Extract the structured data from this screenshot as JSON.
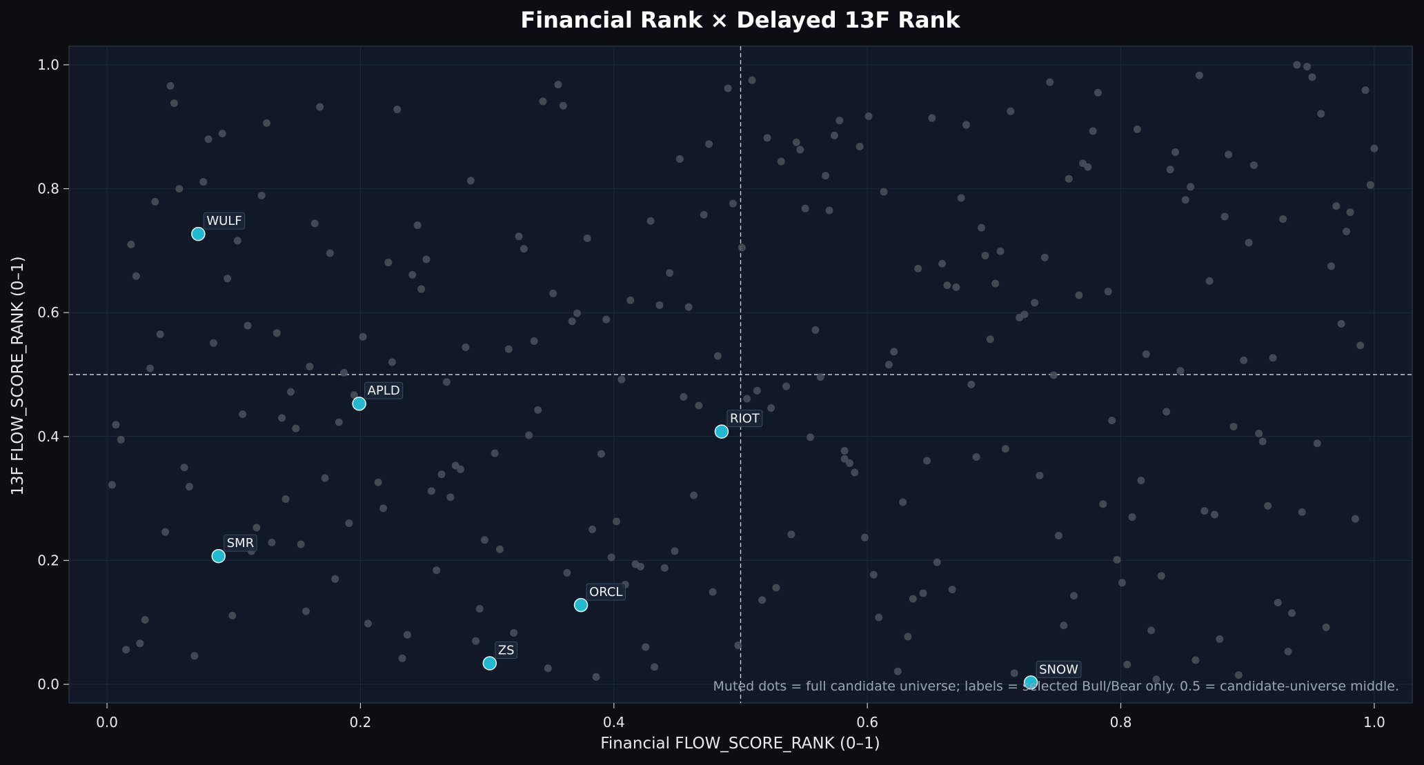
{
  "chart_data": {
    "type": "scatter",
    "title": "Financial Rank × Delayed 13F Rank",
    "xlabel": "Financial FLOW_SCORE_RANK (0–1)",
    "ylabel": "13F FLOW_SCORE_RANK (0–1)",
    "xlim": [
      -0.03,
      1.03
    ],
    "ylim": [
      -0.03,
      1.03
    ],
    "xticks": [
      "0.0",
      "0.2",
      "0.4",
      "0.6",
      "0.8",
      "1.0"
    ],
    "yticks": [
      "0.0",
      "0.2",
      "0.4",
      "0.6",
      "0.8",
      "1.0"
    ],
    "reference_lines": {
      "x": 0.5,
      "y": 0.5,
      "style": "dashed"
    },
    "grid": true,
    "note": "Muted dots = full candidate universe; labels = selected Bull/Bear only. 0.5 = candidate-universe middle.",
    "colors": {
      "background": "#0b0f13",
      "plot_background": "#111827",
      "muted_point": "#4b525d",
      "selected_point": "#22b8cf",
      "reference_line": "#c8ccd3"
    },
    "selected": [
      {
        "ticker": "WULF",
        "x": 0.072,
        "y": 0.727
      },
      {
        "ticker": "APLD",
        "x": 0.199,
        "y": 0.453
      },
      {
        "ticker": "RIOT",
        "x": 0.485,
        "y": 0.408
      },
      {
        "ticker": "SMR",
        "x": 0.088,
        "y": 0.207
      },
      {
        "ticker": "ORCL",
        "x": 0.374,
        "y": 0.128
      },
      {
        "ticker": "ZS",
        "x": 0.302,
        "y": 0.034
      },
      {
        "ticker": "SNOW",
        "x": 0.729,
        "y": 0.003
      }
    ],
    "universe": [
      [
        0.004,
        0.322
      ],
      [
        0.007,
        0.419
      ],
      [
        0.011,
        0.395
      ],
      [
        0.015,
        0.056
      ],
      [
        0.019,
        0.71
      ],
      [
        0.023,
        0.659
      ],
      [
        0.026,
        0.066
      ],
      [
        0.03,
        0.104
      ],
      [
        0.034,
        0.51
      ],
      [
        0.038,
        0.779
      ],
      [
        0.042,
        0.565
      ],
      [
        0.046,
        0.246
      ],
      [
        0.05,
        0.966
      ],
      [
        0.053,
        0.938
      ],
      [
        0.057,
        0.8
      ],
      [
        0.061,
        0.35
      ],
      [
        0.065,
        0.319
      ],
      [
        0.069,
        0.046
      ],
      [
        0.076,
        0.811
      ],
      [
        0.08,
        0.88
      ],
      [
        0.084,
        0.551
      ],
      [
        0.091,
        0.889
      ],
      [
        0.095,
        0.655
      ],
      [
        0.099,
        0.111
      ],
      [
        0.103,
        0.716
      ],
      [
        0.107,
        0.436
      ],
      [
        0.111,
        0.579
      ],
      [
        0.114,
        0.215
      ],
      [
        0.118,
        0.253
      ],
      [
        0.122,
        0.789
      ],
      [
        0.126,
        0.906
      ],
      [
        0.13,
        0.229
      ],
      [
        0.134,
        0.567
      ],
      [
        0.138,
        0.43
      ],
      [
        0.141,
        0.299
      ],
      [
        0.145,
        0.472
      ],
      [
        0.149,
        0.413
      ],
      [
        0.153,
        0.226
      ],
      [
        0.157,
        0.118
      ],
      [
        0.16,
        0.513
      ],
      [
        0.164,
        0.744
      ],
      [
        0.168,
        0.932
      ],
      [
        0.172,
        0.333
      ],
      [
        0.176,
        0.696
      ],
      [
        0.18,
        0.17
      ],
      [
        0.183,
        0.423
      ],
      [
        0.187,
        0.503
      ],
      [
        0.191,
        0.26
      ],
      [
        0.195,
        0.467
      ],
      [
        0.202,
        0.561
      ],
      [
        0.206,
        0.098
      ],
      [
        0.21,
        0.472
      ],
      [
        0.214,
        0.326
      ],
      [
        0.218,
        0.284
      ],
      [
        0.222,
        0.681
      ],
      [
        0.225,
        0.52
      ],
      [
        0.229,
        0.928
      ],
      [
        0.233,
        0.042
      ],
      [
        0.237,
        0.08
      ],
      [
        0.241,
        0.661
      ],
      [
        0.245,
        0.741
      ],
      [
        0.248,
        0.638
      ],
      [
        0.252,
        0.686
      ],
      [
        0.256,
        0.312
      ],
      [
        0.26,
        0.184
      ],
      [
        0.264,
        0.339
      ],
      [
        0.268,
        0.488
      ],
      [
        0.271,
        0.302
      ],
      [
        0.275,
        0.353
      ],
      [
        0.279,
        0.347
      ],
      [
        0.283,
        0.544
      ],
      [
        0.287,
        0.813
      ],
      [
        0.291,
        0.07
      ],
      [
        0.294,
        0.122
      ],
      [
        0.298,
        0.233
      ],
      [
        0.306,
        0.373
      ],
      [
        0.31,
        0.218
      ],
      [
        0.317,
        0.541
      ],
      [
        0.321,
        0.083
      ],
      [
        0.325,
        0.723
      ],
      [
        0.329,
        0.703
      ],
      [
        0.333,
        0.402
      ],
      [
        0.337,
        0.554
      ],
      [
        0.34,
        0.443
      ],
      [
        0.344,
        0.941
      ],
      [
        0.348,
        0.026
      ],
      [
        0.352,
        0.631
      ],
      [
        0.356,
        0.968
      ],
      [
        0.36,
        0.934
      ],
      [
        0.363,
        0.18
      ],
      [
        0.367,
        0.586
      ],
      [
        0.371,
        0.599
      ],
      [
        0.379,
        0.72
      ],
      [
        0.383,
        0.25
      ],
      [
        0.386,
        0.012
      ],
      [
        0.39,
        0.372
      ],
      [
        0.394,
        0.589
      ],
      [
        0.398,
        0.205
      ],
      [
        0.402,
        0.263
      ],
      [
        0.406,
        0.492
      ],
      [
        0.409,
        0.161
      ],
      [
        0.413,
        0.62
      ],
      [
        0.417,
        0.194
      ],
      [
        0.421,
        0.19
      ],
      [
        0.425,
        0.06
      ],
      [
        0.429,
        0.748
      ],
      [
        0.432,
        0.028
      ],
      [
        0.436,
        0.612
      ],
      [
        0.44,
        0.188
      ],
      [
        0.444,
        0.664
      ],
      [
        0.448,
        0.215
      ],
      [
        0.452,
        0.848
      ],
      [
        0.455,
        0.464
      ],
      [
        0.459,
        0.609
      ],
      [
        0.463,
        0.305
      ],
      [
        0.467,
        0.45
      ],
      [
        0.471,
        0.758
      ],
      [
        0.475,
        0.872
      ],
      [
        0.478,
        0.149
      ],
      [
        0.482,
        0.53
      ],
      [
        0.49,
        0.962
      ],
      [
        0.494,
        0.776
      ],
      [
        0.498,
        0.063
      ],
      [
        0.501,
        0.705
      ],
      [
        0.505,
        0.461
      ],
      [
        0.509,
        0.975
      ],
      [
        0.513,
        0.474
      ],
      [
        0.517,
        0.136
      ],
      [
        0.521,
        0.882
      ],
      [
        0.524,
        0.446
      ],
      [
        0.528,
        0.156
      ],
      [
        0.532,
        0.844
      ],
      [
        0.536,
        0.481
      ],
      [
        0.54,
        0.242
      ],
      [
        0.544,
        0.875
      ],
      [
        0.547,
        0.863
      ],
      [
        0.551,
        0.768
      ],
      [
        0.555,
        0.399
      ],
      [
        0.559,
        0.572
      ],
      [
        0.563,
        0.496
      ],
      [
        0.567,
        0.821
      ],
      [
        0.57,
        0.765
      ],
      [
        0.574,
        0.886
      ],
      [
        0.578,
        0.91
      ],
      [
        0.582,
        0.377
      ],
      [
        0.582,
        0.364
      ],
      [
        0.586,
        0.357
      ],
      [
        0.59,
        0.342
      ],
      [
        0.594,
        0.868
      ],
      [
        0.598,
        0.237
      ],
      [
        0.601,
        0.917
      ],
      [
        0.605,
        0.177
      ],
      [
        0.609,
        0.108
      ],
      [
        0.613,
        0.795
      ],
      [
        0.617,
        0.516
      ],
      [
        0.621,
        0.537
      ],
      [
        0.624,
        0.021
      ],
      [
        0.628,
        0.294
      ],
      [
        0.632,
        0.077
      ],
      [
        0.636,
        0.138
      ],
      [
        0.64,
        0.671
      ],
      [
        0.644,
        0.147
      ],
      [
        0.647,
        0.361
      ],
      [
        0.651,
        0.914
      ],
      [
        0.655,
        0.197
      ],
      [
        0.659,
        0.679
      ],
      [
        0.663,
        0.644
      ],
      [
        0.667,
        0.153
      ],
      [
        0.67,
        0.641
      ],
      [
        0.674,
        0.785
      ],
      [
        0.678,
        0.903
      ],
      [
        0.682,
        0.484
      ],
      [
        0.686,
        0.367
      ],
      [
        0.69,
        0.737
      ],
      [
        0.693,
        0.692
      ],
      [
        0.697,
        0.557
      ],
      [
        0.701,
        0.647
      ],
      [
        0.705,
        0.699
      ],
      [
        0.709,
        0.38
      ],
      [
        0.713,
        0.925
      ],
      [
        0.716,
        0.018
      ],
      [
        0.72,
        0.592
      ],
      [
        0.724,
        0.597
      ],
      [
        0.732,
        0.616
      ],
      [
        0.736,
        0.337
      ],
      [
        0.74,
        0.689
      ],
      [
        0.744,
        0.972
      ],
      [
        0.747,
        0.499
      ],
      [
        0.751,
        0.24
      ],
      [
        0.755,
        0.095
      ],
      [
        0.759,
        0.816
      ],
      [
        0.763,
        0.143
      ],
      [
        0.767,
        0.628
      ],
      [
        0.77,
        0.841
      ],
      [
        0.774,
        0.835
      ],
      [
        0.778,
        0.893
      ],
      [
        0.782,
        0.955
      ],
      [
        0.786,
        0.291
      ],
      [
        0.79,
        0.634
      ],
      [
        0.793,
        0.426
      ],
      [
        0.797,
        0.201
      ],
      [
        0.801,
        0.164
      ],
      [
        0.805,
        0.032
      ],
      [
        0.809,
        0.27
      ],
      [
        0.813,
        0.896
      ],
      [
        0.816,
        0.329
      ],
      [
        0.82,
        0.533
      ],
      [
        0.824,
        0.087
      ],
      [
        0.828,
        0.008
      ],
      [
        0.832,
        0.175
      ],
      [
        0.836,
        0.44
      ],
      [
        0.839,
        0.831
      ],
      [
        0.843,
        0.859
      ],
      [
        0.847,
        0.506
      ],
      [
        0.851,
        0.782
      ],
      [
        0.855,
        0.803
      ],
      [
        0.859,
        0.039
      ],
      [
        0.862,
        0.983
      ],
      [
        0.866,
        0.28
      ],
      [
        0.87,
        0.651
      ],
      [
        0.874,
        0.274
      ],
      [
        0.878,
        0.073
      ],
      [
        0.882,
        0.755
      ],
      [
        0.885,
        0.855
      ],
      [
        0.889,
        0.416
      ],
      [
        0.893,
        0.015
      ],
      [
        0.897,
        0.523
      ],
      [
        0.901,
        0.713
      ],
      [
        0.905,
        0.838
      ],
      [
        0.909,
        0.405
      ],
      [
        0.912,
        0.392
      ],
      [
        0.916,
        0.288
      ],
      [
        0.92,
        0.527
      ],
      [
        0.924,
        0.132
      ],
      [
        0.928,
        0.751
      ],
      [
        0.932,
        0.053
      ],
      [
        0.935,
        0.115
      ],
      [
        0.939,
        1.0
      ],
      [
        0.943,
        0.278
      ],
      [
        0.947,
        0.997
      ],
      [
        0.951,
        0.98
      ],
      [
        0.955,
        0.389
      ],
      [
        0.958,
        0.921
      ],
      [
        0.962,
        0.092
      ],
      [
        0.966,
        0.675
      ],
      [
        0.97,
        0.772
      ],
      [
        0.974,
        0.582
      ],
      [
        0.978,
        0.731
      ],
      [
        0.981,
        0.762
      ],
      [
        0.985,
        0.267
      ],
      [
        0.989,
        0.547
      ],
      [
        0.993,
        0.959
      ],
      [
        0.997,
        0.806
      ],
      [
        1.0,
        0.865
      ]
    ]
  }
}
